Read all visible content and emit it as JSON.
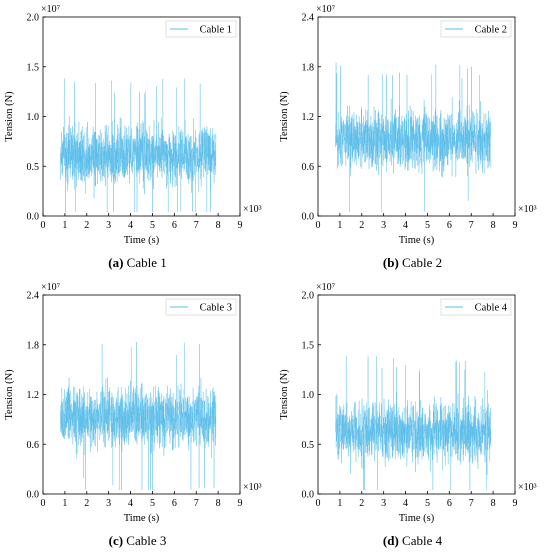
{
  "chart_data": [
    {
      "type": "line",
      "series": [
        {
          "name": "Cable 1",
          "mean": 0.62,
          "spread": 0.5,
          "x_start": 0.8,
          "x_end": 7.9
        }
      ],
      "xlabel": "Time (s)",
      "ylabel": "Tension (N)",
      "xlim": [
        0,
        9
      ],
      "ylim": [
        0,
        2.0
      ],
      "xticks": [
        "0",
        "1",
        "2",
        "3",
        "4",
        "5",
        "6",
        "7",
        "8",
        "9"
      ],
      "yticks": [
        "0.0",
        "0.5",
        "1.0",
        "1.5",
        "2.0"
      ],
      "x_multiplier": "×10³",
      "y_multiplier": "×10⁷",
      "caption_letter": "(a)",
      "caption_text": " Cable 1",
      "legend_placement": "top-right",
      "grid": false,
      "color": "#5bbde8"
    },
    {
      "type": "line",
      "series": [
        {
          "name": "Cable 2",
          "mean": 0.92,
          "spread": 0.6,
          "x_start": 0.8,
          "x_end": 7.9
        }
      ],
      "xlabel": "Time (s)",
      "ylabel": "Tension (N)",
      "xlim": [
        0,
        9
      ],
      "ylim": [
        0,
        2.4
      ],
      "xticks": [
        "0",
        "1",
        "2",
        "3",
        "4",
        "5",
        "6",
        "7",
        "8",
        "9"
      ],
      "yticks": [
        "0.0",
        "0.6",
        "1.2",
        "1.8",
        "2.4"
      ],
      "x_multiplier": "×10³",
      "y_multiplier": "×10⁷",
      "caption_letter": "(b)",
      "caption_text": " Cable 2",
      "legend_placement": "top-right",
      "grid": false,
      "color": "#5bbde8"
    },
    {
      "type": "line",
      "series": [
        {
          "name": "Cable 3",
          "mean": 0.92,
          "spread": 0.6,
          "x_start": 0.8,
          "x_end": 7.9
        }
      ],
      "xlabel": "Time (s)",
      "ylabel": "Tension (N)",
      "xlim": [
        0,
        9
      ],
      "ylim": [
        0,
        2.4
      ],
      "xticks": [
        "0",
        "1",
        "2",
        "3",
        "4",
        "5",
        "6",
        "7",
        "8",
        "9"
      ],
      "yticks": [
        "0.0",
        "0.6",
        "1.2",
        "1.8",
        "2.4"
      ],
      "x_multiplier": "×10³",
      "y_multiplier": "×10⁷",
      "caption_letter": "(c)",
      "caption_text": " Cable 3",
      "legend_placement": "top-right",
      "grid": false,
      "color": "#5bbde8"
    },
    {
      "type": "line",
      "series": [
        {
          "name": "Cable 4",
          "mean": 0.62,
          "spread": 0.5,
          "x_start": 0.8,
          "x_end": 7.9
        }
      ],
      "xlabel": "Time (s)",
      "ylabel": "Tension (N)",
      "xlim": [
        0,
        9
      ],
      "ylim": [
        0,
        2.0
      ],
      "xticks": [
        "0",
        "1",
        "2",
        "3",
        "4",
        "5",
        "6",
        "7",
        "8",
        "9"
      ],
      "yticks": [
        "0.0",
        "0.5",
        "1.0",
        "1.5",
        "2.0"
      ],
      "x_multiplier": "×10³",
      "y_multiplier": "×10⁷",
      "caption_letter": "(d)",
      "caption_text": " Cable 4",
      "legend_placement": "top-right",
      "grid": false,
      "color": "#5bbde8"
    }
  ]
}
